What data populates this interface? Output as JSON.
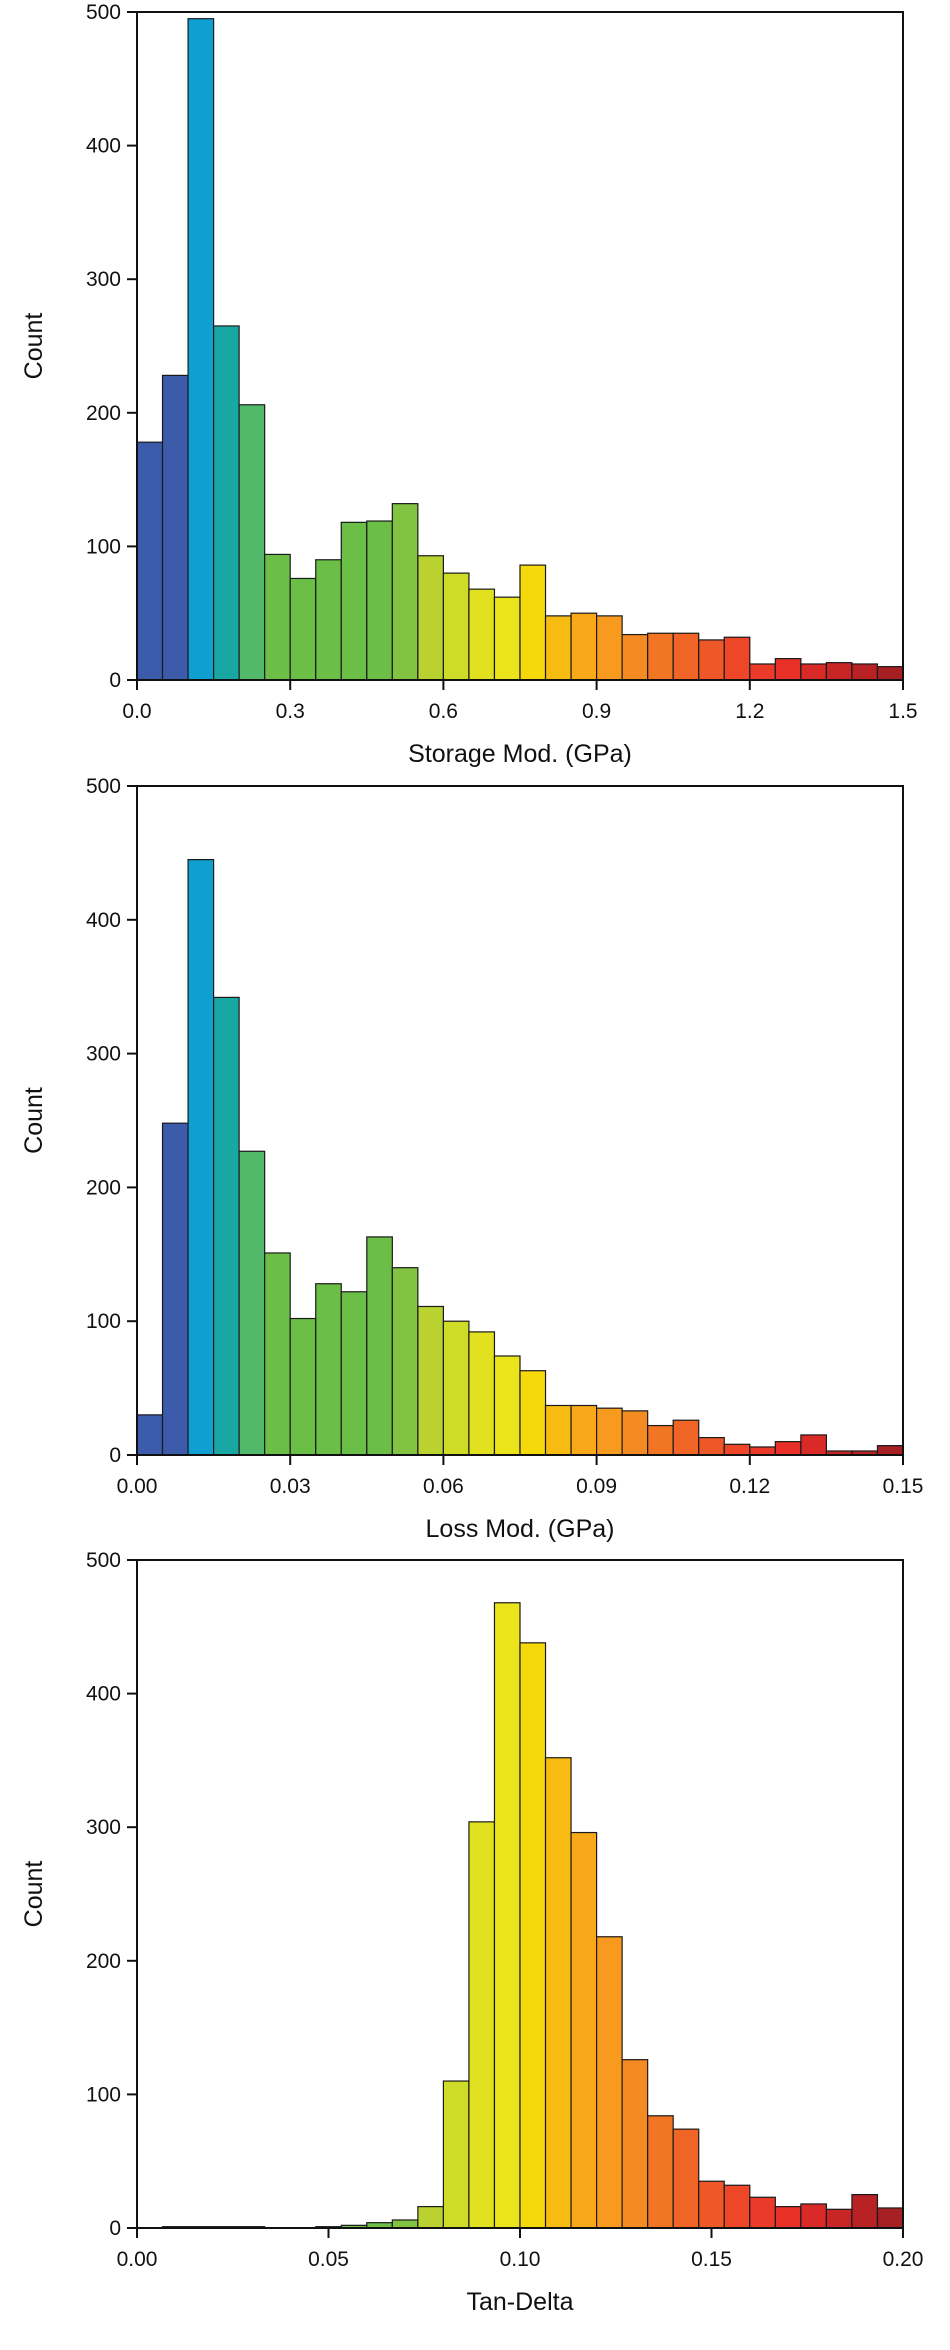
{
  "chart_data": [
    {
      "type": "bar",
      "panel": "storage-modulus-histogram",
      "xlabel": "Storage Mod. (GPa)",
      "ylabel": "Count",
      "xlim": [
        0,
        1.5
      ],
      "ylim": [
        0,
        500
      ],
      "xticks": [
        0.0,
        0.3,
        0.6,
        0.9,
        1.2,
        1.5
      ],
      "xtick_labels": [
        "0.0",
        "0.3",
        "0.6",
        "0.9",
        "1.2",
        "1.5"
      ],
      "yticks": [
        0,
        100,
        200,
        300,
        400,
        500
      ],
      "ytick_labels": [
        "0",
        "100",
        "200",
        "300",
        "400",
        "500"
      ],
      "bin_width": 0.05,
      "x": [
        0.0,
        0.05,
        0.1,
        0.15,
        0.2,
        0.25,
        0.3,
        0.35,
        0.4,
        0.45,
        0.5,
        0.55,
        0.6,
        0.65,
        0.7,
        0.75,
        0.8,
        0.85,
        0.9,
        0.95,
        1.0,
        1.05,
        1.1,
        1.15,
        1.2,
        1.25,
        1.3,
        1.35,
        1.4,
        1.45
      ],
      "values": [
        178,
        228,
        495,
        265,
        206,
        94,
        76,
        90,
        118,
        119,
        132,
        93,
        80,
        68,
        62,
        86,
        48,
        50,
        48,
        34,
        35,
        35,
        30,
        32,
        12,
        16,
        12,
        13,
        12,
        10
      ],
      "colors": [
        "#3d5bab",
        "#3d5bab",
        "#0f9fd0",
        "#19a7a3",
        "#52b86a",
        "#6cbf46",
        "#6cbf46",
        "#6cbf46",
        "#6cbf46",
        "#6cbf46",
        "#82c341",
        "#b9d230",
        "#cfdc27",
        "#e2e11f",
        "#ece41b",
        "#f6d90a",
        "#f8bb12",
        "#f8a819",
        "#f79a1d",
        "#f48a22",
        "#f27524",
        "#f06526",
        "#ee5727",
        "#ed4728",
        "#eb3a29",
        "#e83028",
        "#d92a28",
        "#c92527",
        "#b82225",
        "#a51f23"
      ]
    },
    {
      "type": "bar",
      "panel": "loss-modulus-histogram",
      "xlabel": "Loss Mod. (GPa)",
      "ylabel": "Count",
      "xlim": [
        0,
        0.15
      ],
      "ylim": [
        0,
        500
      ],
      "xticks": [
        0.0,
        0.03,
        0.06,
        0.09,
        0.12,
        0.15
      ],
      "xtick_labels": [
        "0.00",
        "0.03",
        "0.06",
        "0.09",
        "0.12",
        "0.15"
      ],
      "yticks": [
        0,
        100,
        200,
        300,
        400,
        500
      ],
      "ytick_labels": [
        "0",
        "100",
        "200",
        "300",
        "400",
        "500"
      ],
      "bin_width": 0.005,
      "x": [
        0.0,
        0.005,
        0.01,
        0.015,
        0.02,
        0.025,
        0.03,
        0.035,
        0.04,
        0.045,
        0.05,
        0.055,
        0.06,
        0.065,
        0.07,
        0.075,
        0.08,
        0.085,
        0.09,
        0.095,
        0.1,
        0.105,
        0.11,
        0.115,
        0.12,
        0.125,
        0.13,
        0.135,
        0.14,
        0.145
      ],
      "values": [
        30,
        248,
        445,
        342,
        227,
        151,
        102,
        128,
        122,
        163,
        140,
        111,
        100,
        92,
        74,
        63,
        37,
        37,
        35,
        33,
        22,
        26,
        13,
        8,
        6,
        10,
        15,
        3,
        3,
        7
      ],
      "colors": [
        "#3d5bab",
        "#3d5bab",
        "#0f9fd0",
        "#19a7a3",
        "#52b86a",
        "#6cbf46",
        "#6cbf46",
        "#6cbf46",
        "#6cbf46",
        "#6cbf46",
        "#82c341",
        "#b9d230",
        "#cfdc27",
        "#e2e11f",
        "#ece41b",
        "#f6d90a",
        "#f8bb12",
        "#f8a819",
        "#f79a1d",
        "#f48a22",
        "#f27524",
        "#f06526",
        "#ee5727",
        "#ed4728",
        "#eb3a29",
        "#e83028",
        "#d92a28",
        "#c92527",
        "#b82225",
        "#a51f23"
      ]
    },
    {
      "type": "bar",
      "panel": "tan-delta-histogram",
      "xlabel": "Tan-Delta",
      "ylabel": "Count",
      "xlim": [
        0,
        0.2
      ],
      "ylim": [
        0,
        500
      ],
      "xticks": [
        0.0,
        0.05,
        0.1,
        0.15,
        0.2
      ],
      "xtick_labels": [
        "0.00",
        "0.05",
        "0.10",
        "0.15",
        "0.20"
      ],
      "yticks": [
        0,
        100,
        200,
        300,
        400,
        500
      ],
      "ytick_labels": [
        "0",
        "100",
        "200",
        "300",
        "400",
        "500"
      ],
      "bin_width": 0.0066667,
      "x": [
        0.0,
        0.0066667,
        0.0133333,
        0.02,
        0.0266667,
        0.0333333,
        0.04,
        0.0466667,
        0.0533333,
        0.06,
        0.0666667,
        0.0733333,
        0.08,
        0.0866667,
        0.0933333,
        0.1,
        0.1066667,
        0.1133333,
        0.12,
        0.1266667,
        0.1333333,
        0.14,
        0.1466667,
        0.1533333,
        0.16,
        0.1666667,
        0.1733333,
        0.18,
        0.1866667,
        0.1933333
      ],
      "values": [
        0,
        1,
        1,
        1,
        1,
        0,
        0,
        1,
        2,
        4,
        6,
        16,
        110,
        304,
        468,
        438,
        352,
        296,
        218,
        126,
        84,
        74,
        35,
        32,
        23,
        16,
        18,
        14,
        25,
        15
      ],
      "colors": [
        "#3d5bab",
        "#3d5bab",
        "#3d5bab",
        "#3d5bab",
        "#3d5bab",
        "#3d5bab",
        "#6cbf46",
        "#6cbf46",
        "#6cbf46",
        "#6cbf46",
        "#82c341",
        "#b9d230",
        "#cfdc27",
        "#e2e11f",
        "#ece41b",
        "#f6d90a",
        "#f8bb12",
        "#f8a819",
        "#f79a1d",
        "#f48a22",
        "#f27524",
        "#f06526",
        "#ee5727",
        "#ed4728",
        "#eb3a29",
        "#e83028",
        "#d92a28",
        "#c92527",
        "#b82225",
        "#a51f23"
      ]
    }
  ]
}
